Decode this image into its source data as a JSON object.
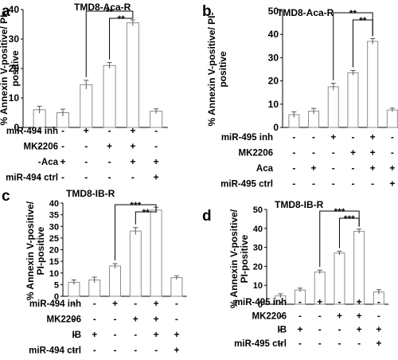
{
  "chart_data": [
    {
      "panel_letter": "a",
      "type": "bar",
      "title": "TMD8-Aca-R",
      "ylabel": "% Annexin V-positive/ PI-positive",
      "ylabel_lines": [
        "% Annexin V-positive/ PI-",
        "positive"
      ],
      "ylim": [
        0,
        40
      ],
      "yticks": [
        0,
        10,
        20,
        30,
        40
      ],
      "values": [
        6,
        5,
        14.5,
        21,
        35.5,
        5.5
      ],
      "errors": [
        1.2,
        1.2,
        1.5,
        1.0,
        1.0,
        0.8
      ],
      "conditions": [
        {
          "label": "miR-494 inh",
          "marks": [
            "-",
            "-",
            "+",
            "-",
            "+",
            "-"
          ]
        },
        {
          "label": "MK2206",
          "marks": [
            "-",
            "-",
            "-",
            "+",
            "+",
            "-"
          ]
        },
        {
          "label": "Aca",
          "marks": [
            "-",
            "+",
            "-",
            "-",
            "+",
            "+"
          ]
        },
        {
          "label": "miR-494 ctrl",
          "marks": [
            "-",
            "-",
            "-",
            "-",
            "-",
            "+"
          ]
        }
      ],
      "significance": [
        {
          "from": 2,
          "to": 4,
          "label": "**"
        },
        {
          "from": 3,
          "to": 4,
          "label": "**"
        }
      ]
    },
    {
      "panel_letter": "b",
      "type": "bar",
      "title": "TMD8-Aca-R",
      "ylabel": "% Annexin V-positive/ PI-positive",
      "ylabel_lines": [
        "% Annexin V-positive/ PI-",
        "positive"
      ],
      "ylim": [
        0,
        50
      ],
      "yticks": [
        0,
        10,
        20,
        30,
        40,
        50
      ],
      "values": [
        5.5,
        7,
        17.5,
        23.5,
        37,
        7.5
      ],
      "errors": [
        1.2,
        1.2,
        1.5,
        1.0,
        1.2,
        0.8
      ],
      "conditions": [
        {
          "label": "miR-495 inh",
          "marks": [
            "-",
            "-",
            "+",
            "-",
            "+",
            "-"
          ]
        },
        {
          "label": "MK2206",
          "marks": [
            "-",
            "-",
            "-",
            "+",
            "+",
            "-"
          ]
        },
        {
          "label": "Aca",
          "marks": [
            "-",
            "+",
            "-",
            "-",
            "+",
            "+"
          ]
        },
        {
          "label": "miR-495 ctrl",
          "marks": [
            "-",
            "-",
            "-",
            "-",
            "-",
            "+"
          ]
        }
      ],
      "significance": [
        {
          "from": 2,
          "to": 4,
          "label": "**"
        },
        {
          "from": 3,
          "to": 4,
          "label": "**"
        }
      ]
    },
    {
      "panel_letter": "c",
      "type": "bar",
      "title": "TMD8-IB-R",
      "ylabel": "% Annexin V-positive/ PI-positive",
      "ylabel_lines": [
        "% Annexin V-positive/",
        "PI-positive"
      ],
      "ylim": [
        0,
        40
      ],
      "yticks": [
        0,
        5,
        10,
        15,
        20,
        25,
        30,
        35,
        40
      ],
      "values": [
        6,
        7,
        13,
        28,
        37,
        8
      ],
      "errors": [
        1.0,
        1.2,
        1.0,
        1.5,
        1.2,
        0.8
      ],
      "conditions": [
        {
          "label": "miR-494 inh",
          "marks": [
            "-",
            "-",
            "+",
            "-",
            "+",
            "-"
          ]
        },
        {
          "label": "MK2206",
          "marks": [
            "-",
            "-",
            "-",
            "+",
            "+",
            "-"
          ]
        },
        {
          "label": "IB",
          "marks": [
            "-",
            "+",
            "-",
            "-",
            "+",
            "+"
          ]
        },
        {
          "label": "miR-494 ctrl",
          "marks": [
            "-",
            "-",
            "-",
            "-",
            "-",
            "+"
          ]
        }
      ],
      "significance": [
        {
          "from": 2,
          "to": 4,
          "label": "***"
        },
        {
          "from": 3,
          "to": 4,
          "label": "**"
        }
      ]
    },
    {
      "panel_letter": "d",
      "type": "bar",
      "title": "TMD8-IB-R",
      "ylabel": "% Annexin V-positive/ PI-positive",
      "ylabel_lines": [
        "% Annexin V-positive/",
        "PI-positive"
      ],
      "ylim": [
        0,
        50
      ],
      "yticks": [
        0,
        10,
        20,
        30,
        40,
        50
      ],
      "values": [
        4.5,
        7.5,
        17,
        27,
        38.5,
        6.5
      ],
      "errors": [
        1.0,
        1.0,
        1.0,
        1.0,
        1.2,
        1.2
      ],
      "conditions": [
        {
          "label": "miR-495 inh",
          "marks": [
            "-",
            "-",
            "+",
            "-",
            "+",
            "-"
          ]
        },
        {
          "label": "MK2206",
          "marks": [
            "-",
            "-",
            "-",
            "+",
            "+",
            "-"
          ]
        },
        {
          "label": "IB",
          "marks": [
            "-",
            "+",
            "-",
            "-",
            "+",
            "+"
          ]
        },
        {
          "label": "miR-495 ctrl",
          "marks": [
            "-",
            "-",
            "-",
            "-",
            "-",
            "+"
          ]
        }
      ],
      "significance": [
        {
          "from": 2,
          "to": 4,
          "label": "***"
        },
        {
          "from": 3,
          "to": 4,
          "label": "***"
        }
      ]
    }
  ]
}
